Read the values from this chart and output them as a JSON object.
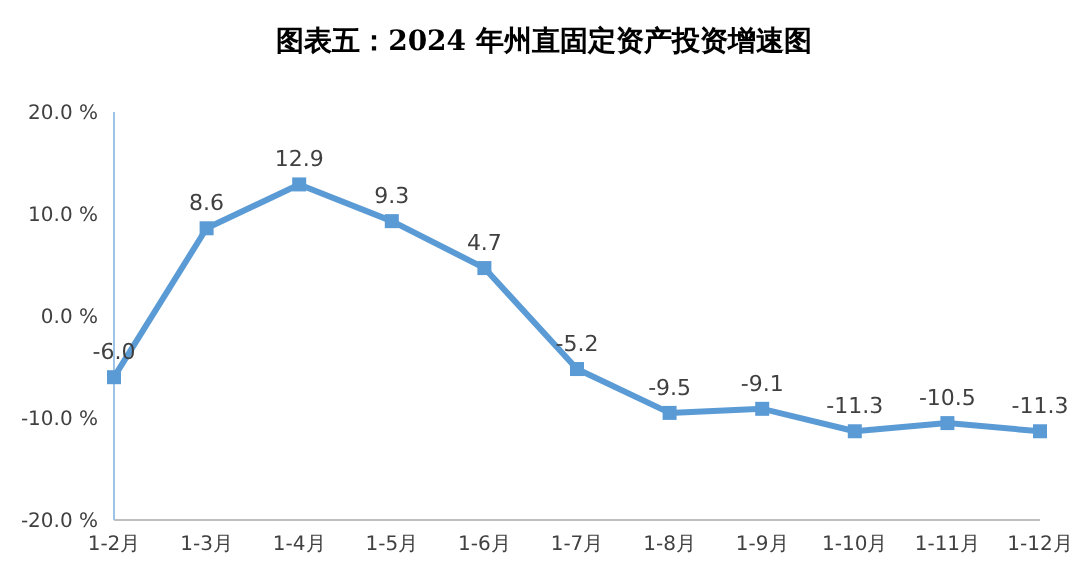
{
  "chart_data": {
    "type": "line",
    "title": "图表五：2024 年州直固定资产投资增速图",
    "categories": [
      "1-2月",
      "1-3月",
      "1-4月",
      "1-5月",
      "1-6月",
      "1-7月",
      "1-8月",
      "1-9月",
      "1-10月",
      "1-11月",
      "1-12月"
    ],
    "series": [
      {
        "color": "#5b9bd5",
        "values": [
          -6.0,
          8.6,
          12.9,
          9.3,
          4.7,
          -5.2,
          -9.5,
          -9.1,
          -11.3,
          -10.5,
          -11.3
        ],
        "value_labels": [
          "-6.0",
          "8.6",
          "12.9",
          "9.3",
          "4.7",
          "-5.2",
          "-9.5",
          "-9.1",
          "-11.3",
          "-10.5",
          "-11.3"
        ]
      }
    ],
    "ylim": [
      -20,
      20
    ],
    "yticks": [
      {
        "value": -20,
        "label": "-20.0 %"
      },
      {
        "value": -10,
        "label": "-10.0 %"
      },
      {
        "value": 0,
        "label": "0.0 %"
      },
      {
        "value": 10,
        "label": "10.0 %"
      },
      {
        "value": 20,
        "label": "20.0 %"
      }
    ],
    "grid": false,
    "marker": "square",
    "line_style": "solid"
  }
}
